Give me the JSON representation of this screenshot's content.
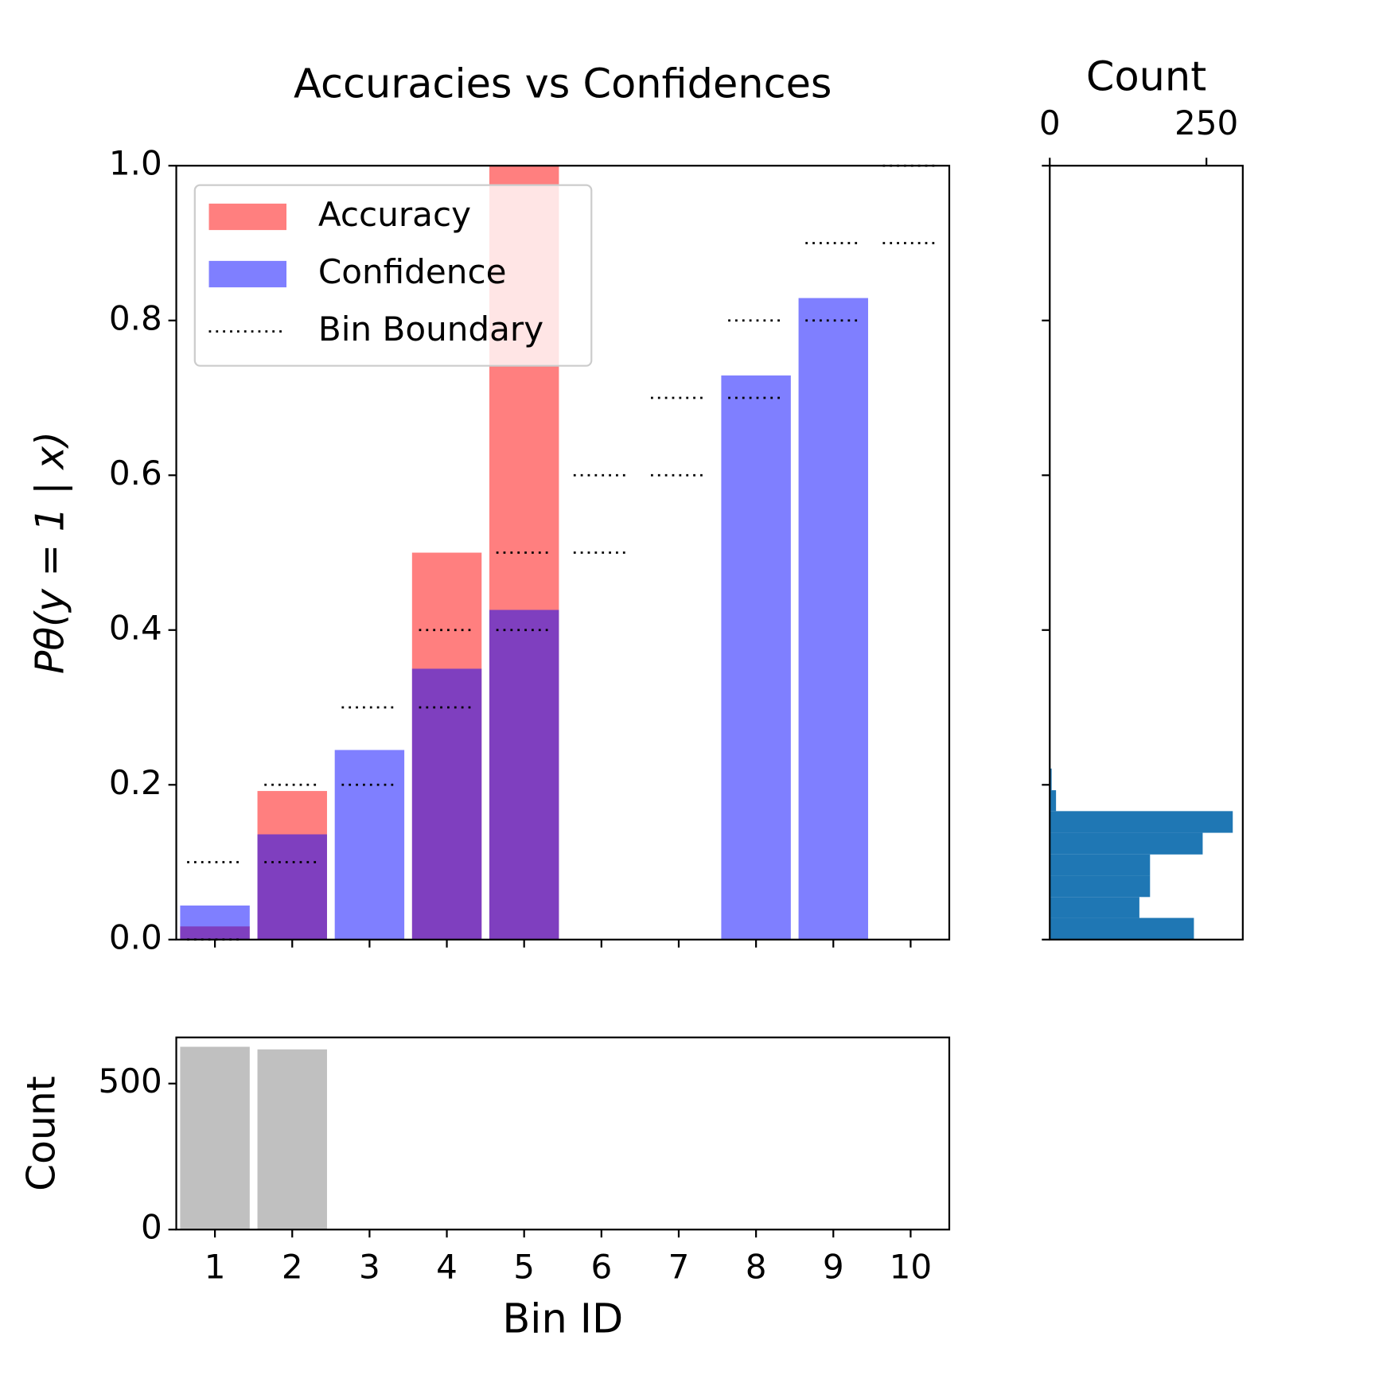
{
  "chart_data": [
    {
      "type": "bar",
      "title": "Accuracies vs Confidences",
      "ylabel": "Pθ(y = 1 | x)",
      "ylim": [
        0,
        1
      ],
      "yticks": [
        {
          "value": 0,
          "label": "0.0"
        },
        0.2,
        0.4,
        0.6,
        0.8,
        {
          "value": 1,
          "label": "1.0"
        }
      ],
      "alpha": 0.5,
      "series": [
        {
          "name": "Accuracy",
          "color": "#ff0000",
          "values": [
            0.017,
            0.192,
            0,
            0.5,
            1.0,
            0,
            0,
            0,
            0,
            0
          ]
        },
        {
          "name": "Confidence",
          "color": "#0000ff",
          "values": [
            0.044,
            0.136,
            0.245,
            0.35,
            0.426,
            0,
            0,
            0.729,
            0.829,
            0
          ]
        }
      ],
      "boundaries": {
        "name": "Bin Boundary",
        "color": "#000000",
        "lower": [
          0,
          0.1,
          0.2,
          0.3,
          0.4,
          0.5,
          0.6,
          0.7,
          0.8,
          0.9
        ],
        "upper": [
          0.1,
          0.2,
          0.3,
          0.4,
          0.5,
          0.6,
          0.7,
          0.8,
          0.9,
          1.0
        ]
      },
      "legend": "upper left"
    },
    {
      "type": "bar",
      "xlabel": "Bin ID",
      "ylabel": "Count",
      "categories": [
        "1",
        "2",
        "3",
        "4",
        "5",
        "6",
        "7",
        "8",
        "9",
        "10"
      ],
      "values": [
        626,
        617,
        0,
        0,
        0,
        0,
        0,
        0,
        0,
        0
      ],
      "color": "#c0c0c0",
      "ylim": [
        0,
        658
      ],
      "yticks": [
        0,
        500
      ]
    },
    {
      "type": "histogram",
      "orientation": "horizontal",
      "xlabel": "Count",
      "bins": [
        0,
        0.028,
        0.055,
        0.083,
        0.11,
        0.138,
        0.166,
        0.193,
        0.221
      ],
      "values": [
        230,
        143,
        160,
        160,
        244,
        292,
        10,
        3
      ],
      "color": "#1f77b4",
      "xlim": [
        0,
        308
      ],
      "xticks": [
        0,
        250
      ],
      "ylim": [
        0,
        1
      ]
    }
  ]
}
